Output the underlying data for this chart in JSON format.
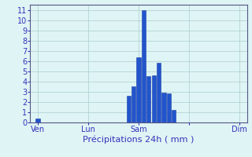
{
  "title": "",
  "xlabel": "Précipitations 24h ( mm )",
  "ylabel": "",
  "background_color": "#dff4f4",
  "bar_color": "#2255cc",
  "bar_edge_color": "#1a3faa",
  "grid_color": "#aacccc",
  "ylim": [
    0,
    11.5
  ],
  "yticks": [
    0,
    1,
    2,
    3,
    4,
    5,
    6,
    7,
    8,
    9,
    10,
    11
  ],
  "bar_positions": [
    1,
    19,
    20,
    21,
    22,
    23,
    24,
    25,
    26,
    27,
    28
  ],
  "bar_heights": [
    0.4,
    2.6,
    3.5,
    6.4,
    11.0,
    4.5,
    4.6,
    5.8,
    2.9,
    2.8,
    1.2
  ],
  "xtick_positions": [
    1,
    11,
    21,
    31,
    41
  ],
  "xtick_labels": [
    "Ven",
    "Lun",
    "Sam",
    "",
    "Dim"
  ],
  "total_bars": 43,
  "xlabel_fontsize": 8,
  "tick_fontsize": 7,
  "tick_color": "#3333bb",
  "xlabel_color": "#3333bb",
  "spine_color": "#555588"
}
